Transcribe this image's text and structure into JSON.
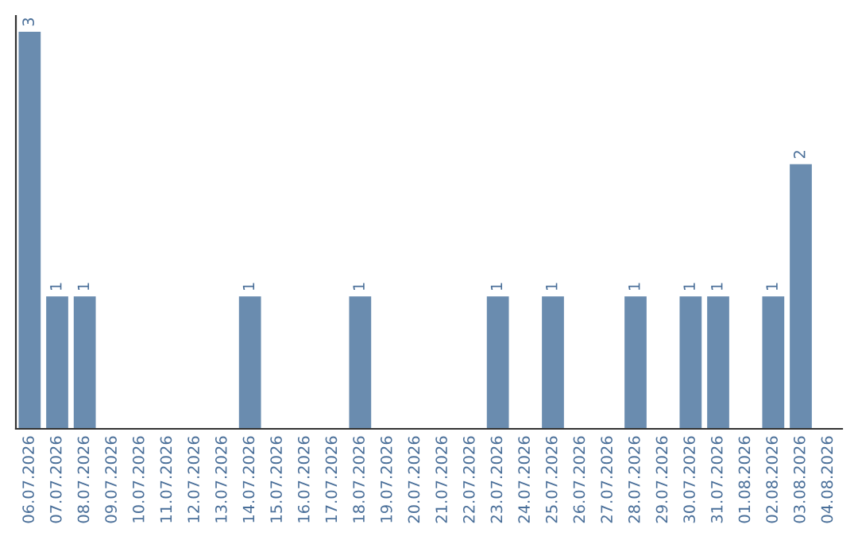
{
  "chart_data": {
    "type": "bar",
    "categories": [
      "06.07.2026",
      "07.07.2026",
      "08.07.2026",
      "09.07.2026",
      "10.07.2026",
      "11.07.2026",
      "12.07.2026",
      "13.07.2026",
      "14.07.2026",
      "15.07.2026",
      "16.07.2026",
      "17.07.2026",
      "18.07.2026",
      "19.07.2026",
      "20.07.2026",
      "21.07.2026",
      "22.07.2026",
      "23.07.2026",
      "24.07.2026",
      "25.07.2026",
      "26.07.2026",
      "27.07.2026",
      "28.07.2026",
      "29.07.2026",
      "30.07.2026",
      "31.07.2026",
      "01.08.2026",
      "02.08.2026",
      "03.08.2026",
      "04.08.2026"
    ],
    "values": [
      3,
      1,
      1,
      null,
      null,
      null,
      null,
      null,
      1,
      null,
      null,
      null,
      1,
      null,
      null,
      null,
      null,
      1,
      null,
      1,
      null,
      null,
      1,
      null,
      1,
      1,
      null,
      1,
      2,
      null
    ],
    "value_labels": [
      "3",
      "1",
      "1",
      null,
      null,
      null,
      null,
      null,
      "1",
      null,
      null,
      null,
      "1",
      null,
      null,
      null,
      null,
      "1",
      null,
      "1",
      null,
      null,
      "1",
      null,
      "1",
      "1",
      null,
      "1",
      "2",
      null
    ],
    "color": "#6a8caf",
    "ylim": [
      0,
      3.12
    ],
    "tick_labels": "x",
    "grid": false,
    "legend": false
  }
}
